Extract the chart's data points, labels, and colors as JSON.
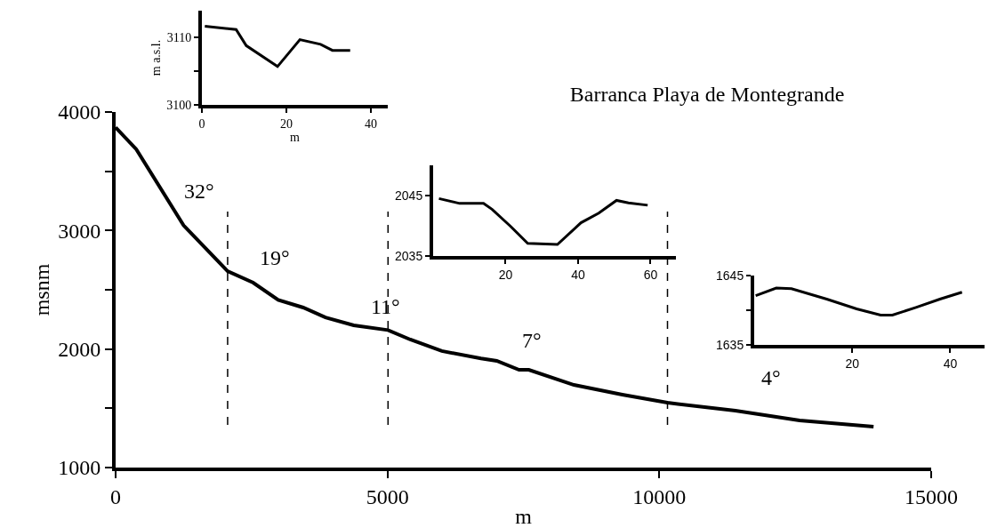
{
  "chart_data": [
    {
      "type": "line",
      "title": "Barranca Playa de Montegrande",
      "xlabel": "m",
      "ylabel": "msnm",
      "x": [
        0,
        380,
        1250,
        2060,
        2530,
        2990,
        3450,
        3860,
        4380,
        5010,
        5420,
        6000,
        6720,
        7010,
        7420,
        7600,
        8430,
        9320,
        10150,
        11400,
        12580,
        13940
      ],
      "values": [
        3870,
        3685,
        3043,
        2657,
        2560,
        2414,
        2350,
        2267,
        2200,
        2160,
        2080,
        1983,
        1920,
        1900,
        1825,
        1825,
        1697,
        1615,
        1547,
        1480,
        1397,
        1345
      ],
      "color": "#000000",
      "xlim": [
        0,
        15000
      ],
      "xticks": [
        0,
        5000,
        10000,
        15000
      ],
      "ylim": [
        1000,
        4000
      ],
      "yticks": [
        1000,
        {
          "value": 1500,
          "label": null
        },
        2000,
        {
          "value": 2500,
          "label": null
        },
        3000,
        {
          "value": 3500,
          "label": null
        },
        4000
      ],
      "ref_lines": [
        {
          "axis": "x",
          "value": 2060,
          "line_style": "dashed"
        },
        {
          "axis": "x",
          "value": 5010,
          "line_style": "dashed"
        },
        {
          "axis": "x",
          "value": 10150,
          "line_style": "dashed"
        }
      ],
      "annotations": [
        "32°",
        "19°",
        "11°",
        "7°",
        "4°"
      ],
      "grid": false,
      "marker": "none",
      "line_style": "solid"
    },
    {
      "type": "line",
      "xlabel": "m",
      "ylabel": "m a.s.l.",
      "x": [
        0.7,
        8.1,
        10.5,
        17.9,
        23.2,
        28.1,
        30.9,
        35.1
      ],
      "values": [
        3111.7,
        3111.2,
        3108.8,
        3105.7,
        3109.7,
        3109.0,
        3108.1,
        3108.1
      ],
      "color": "#000000",
      "xlim": [
        0,
        44
      ],
      "xticks": [
        0,
        20,
        40
      ],
      "ylim": [
        3100,
        3114
      ],
      "yticks": [
        3100,
        {
          "value": 3105,
          "label": null
        },
        3110
      ],
      "grid": false,
      "marker": "none",
      "line_style": "solid"
    },
    {
      "type": "line",
      "x": [
        1.6,
        7.3,
        13.9,
        16.3,
        21.2,
        26.1,
        34.3,
        40.8,
        45.7,
        50.6,
        53.9,
        59.2
      ],
      "values": [
        2044.5,
        2043.7,
        2043.7,
        2042.7,
        2040.0,
        2037.1,
        2036.9,
        2040.5,
        2042.1,
        2044.2,
        2043.8,
        2043.4
      ],
      "color": "#000000",
      "xlim": [
        0,
        67
      ],
      "xticks": [
        20,
        40,
        60
      ],
      "ylim": [
        2035,
        2050
      ],
      "yticks": [
        2035,
        2045
      ],
      "grid": false,
      "marker": "none",
      "line_style": "solid"
    },
    {
      "type": "line",
      "x": [
        0.3,
        4.5,
        7.6,
        14.8,
        20.9,
        25.8,
        28.2,
        33,
        37.9,
        42.4
      ],
      "values": [
        1642.1,
        1643.2,
        1643.1,
        1641.6,
        1640.2,
        1639.3,
        1639.3,
        1640.4,
        1641.6,
        1642.6
      ],
      "color": "#000000",
      "xlim": [
        0,
        47
      ],
      "xticks": [
        20,
        40
      ],
      "ylim": [
        1635,
        1645
      ],
      "yticks": [
        1635,
        {
          "value": 1640,
          "label": null
        },
        1645
      ],
      "grid": false,
      "marker": "none",
      "line_style": "solid"
    }
  ]
}
